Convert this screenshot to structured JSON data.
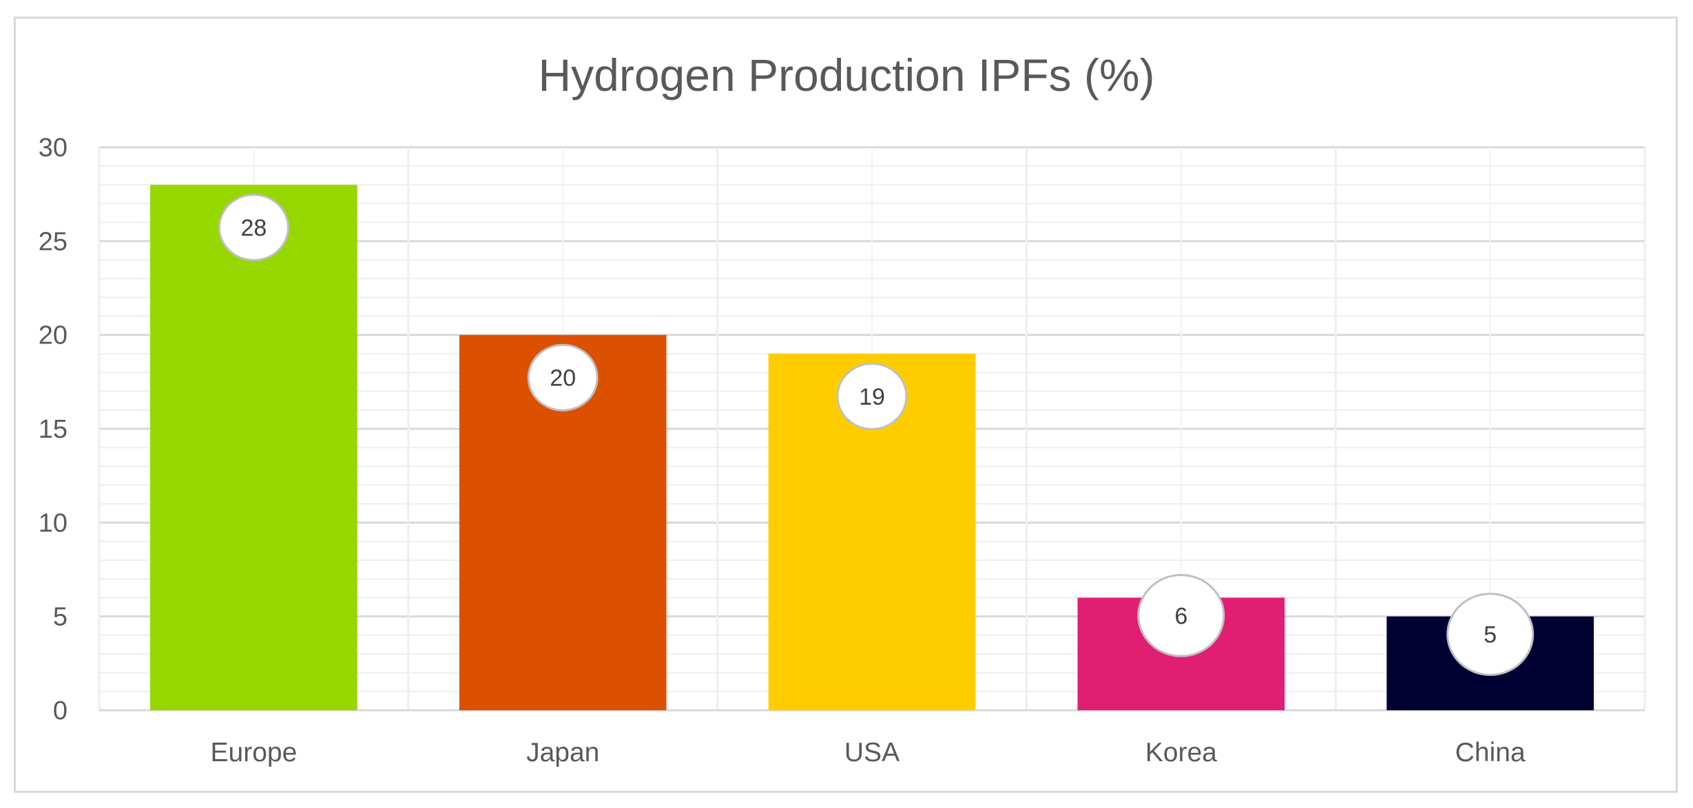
{
  "chart_data": {
    "type": "bar",
    "title": "Hydrogen Production IPFs (%)",
    "categories": [
      "Europe",
      "Japan",
      "USA",
      "Korea",
      "China"
    ],
    "values": [
      28,
      20,
      19,
      6,
      5
    ],
    "colors": [
      "#97d700",
      "#dc5100",
      "#ffcc00",
      "#e01f73",
      "#000133"
    ],
    "ylim": [
      0,
      30
    ],
    "yticks": [
      "0",
      "5",
      "10",
      "15",
      "20",
      "25",
      "30"
    ],
    "xlabel": "",
    "ylabel": "",
    "grid": true,
    "data_labels": [
      "28",
      "20",
      "19",
      "6",
      "5"
    ]
  }
}
